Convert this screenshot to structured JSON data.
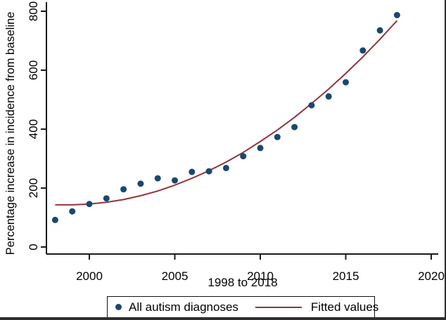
{
  "figure": {
    "background": "#ffffff"
  },
  "legend": {
    "series1_label": "All autism diagnoses",
    "series2_label": "Fitted values"
  },
  "colors": {
    "marker": "#1a476f",
    "fitted_line": "#90353b",
    "axis": "#1a1a1a",
    "text": "#000000",
    "frame_edge": "#2e2e31",
    "legend_border": "#111111"
  },
  "chart_data": {
    "type": "scatter",
    "title": "",
    "xlabel": "1998 to 2018",
    "ylabel": "Percentage increase in incidence from baseline",
    "x": [
      1998,
      1999,
      2000,
      2001,
      2002,
      2003,
      2004,
      2005,
      2006,
      2007,
      2008,
      2009,
      2010,
      2011,
      2012,
      2013,
      2014,
      2015,
      2016,
      2017,
      2018
    ],
    "series": [
      {
        "name": "All autism diagnoses",
        "type": "scatter",
        "values": [
          92,
          121,
          146,
          165,
          196,
          215,
          233,
          226,
          255,
          257,
          268,
          308,
          336,
          373,
          407,
          481,
          511,
          559,
          667,
          735,
          787
        ]
      },
      {
        "name": "Fitted values",
        "type": "line",
        "values": [
          143,
          143,
          146,
          152,
          161,
          174,
          190,
          210,
          233,
          259,
          288,
          321,
          358,
          397,
          440,
          487,
          536,
          589,
          645,
          705,
          768
        ]
      }
    ],
    "x_ticks": [
      2000,
      2005,
      2010,
      2015,
      2020
    ],
    "y_ticks": [
      0,
      200,
      400,
      600,
      800
    ],
    "xlim": [
      1997.5,
      2020.4
    ],
    "ylim": [
      -24,
      830
    ],
    "grid": false,
    "legend_position": "bottom"
  }
}
